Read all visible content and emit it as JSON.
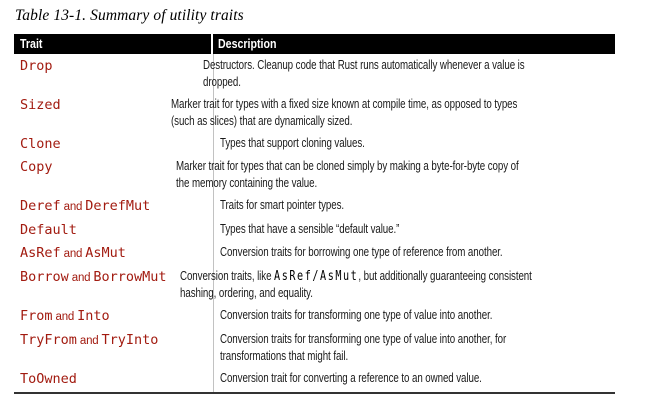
{
  "title": "Table 13-1. Summary of utility traits",
  "colors": {
    "accent_red": "#a21b10",
    "header_bg": "#000000",
    "column_divider": "#c2c2c2",
    "bottom_rule": "#333333",
    "body_text": "#1a1a1a"
  },
  "table": {
    "columns": [
      "Trait",
      "Description"
    ],
    "rows": [
      {
        "trait": [
          {
            "t": "code",
            "v": "Drop"
          }
        ],
        "desc": [
          [
            {
              "t": "plain",
              "v": "Destructors. Cleanup code that Rust runs automatically whenever a value is"
            }
          ],
          [
            {
              "t": "plain",
              "v": "dropped."
            }
          ]
        ]
      },
      {
        "trait": [
          {
            "t": "code",
            "v": "Sized"
          }
        ],
        "desc": [
          [
            {
              "t": "plain",
              "v": "Marker trait for types with a fixed size known at compile time, as opposed to types"
            }
          ],
          [
            {
              "t": "plain",
              "v": "(such as slices) that are dynamically sized."
            }
          ]
        ]
      },
      {
        "trait": [
          {
            "t": "code",
            "v": "Clone"
          }
        ],
        "desc": [
          [
            {
              "t": "plain",
              "v": "Types that support cloning values."
            }
          ]
        ]
      },
      {
        "trait": [
          {
            "t": "code",
            "v": "Copy"
          }
        ],
        "desc": [
          [
            {
              "t": "plain",
              "v": "Marker trait for types that can be cloned simply by making a byte-for-byte copy of"
            }
          ],
          [
            {
              "t": "plain",
              "v": "the memory containing the value."
            }
          ]
        ]
      },
      {
        "trait": [
          {
            "t": "code",
            "v": "Deref"
          },
          {
            "t": "and",
            "v": " and "
          },
          {
            "t": "code",
            "v": "DerefMut"
          }
        ],
        "desc": [
          [
            {
              "t": "plain",
              "v": "Traits for smart pointer types."
            }
          ]
        ]
      },
      {
        "trait": [
          {
            "t": "code",
            "v": "Default"
          }
        ],
        "desc": [
          [
            {
              "t": "plain",
              "v": "Types that have a sensible “default value.”"
            }
          ]
        ]
      },
      {
        "trait": [
          {
            "t": "code",
            "v": "AsRef"
          },
          {
            "t": "and",
            "v": " and "
          },
          {
            "t": "code",
            "v": "AsMut"
          }
        ],
        "desc": [
          [
            {
              "t": "plain",
              "v": "Conversion traits for borrowing one type of reference from another."
            }
          ]
        ]
      },
      {
        "trait": [
          {
            "t": "code",
            "v": "Borrow"
          },
          {
            "t": "and",
            "v": " and "
          },
          {
            "t": "code",
            "v": "BorrowMut"
          }
        ],
        "desc": [
          [
            {
              "t": "plain",
              "v": "Conversion traits, like "
            },
            {
              "t": "code",
              "v": "AsRef/AsMut"
            },
            {
              "t": "plain",
              "v": ", but additionally guaranteeing consistent"
            }
          ],
          [
            {
              "t": "plain",
              "v": "hashing, ordering, and equality."
            }
          ]
        ]
      },
      {
        "trait": [
          {
            "t": "code",
            "v": "From"
          },
          {
            "t": "and",
            "v": " and "
          },
          {
            "t": "code",
            "v": "Into"
          }
        ],
        "desc": [
          [
            {
              "t": "plain",
              "v": "Conversion traits for transforming one type of value into another."
            }
          ]
        ]
      },
      {
        "trait": [
          {
            "t": "code",
            "v": "TryFrom"
          },
          {
            "t": "and",
            "v": " and "
          },
          {
            "t": "code",
            "v": "TryInto"
          }
        ],
        "desc": [
          [
            {
              "t": "plain",
              "v": "Conversion traits for transforming one type of value into another, for"
            }
          ],
          [
            {
              "t": "plain",
              "v": "transformations that might fail."
            }
          ]
        ]
      },
      {
        "trait": [
          {
            "t": "code",
            "v": "ToOwned"
          }
        ],
        "desc": [
          [
            {
              "t": "plain",
              "v": "Conversion trait for converting a reference to an owned value."
            }
          ]
        ]
      }
    ]
  }
}
